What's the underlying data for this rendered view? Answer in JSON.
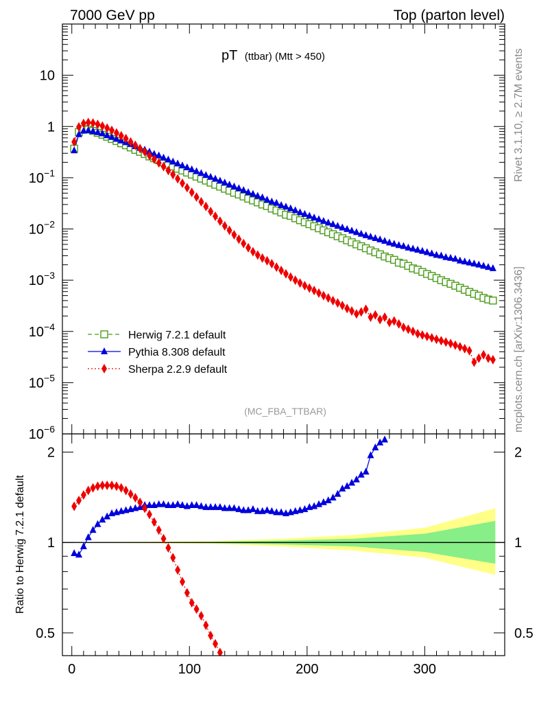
{
  "header": {
    "left": "7000 GeV pp",
    "right": "Top (parton level)"
  },
  "side_labels": {
    "rivet": "Rivet 3.1.10, ≥ 2.7M events",
    "mcplots": "mcplots.cern.ch [arXiv:1306.3436]"
  },
  "chart_data": [
    {
      "type": "line",
      "title_main": "pT",
      "title_sub": "(ttbar) (Mtt > 450)",
      "watermark": "(MC_FBA_TTBAR)",
      "yscale": "log",
      "xlim": [
        -8,
        368
      ],
      "ylim": [
        1e-06,
        100
      ],
      "y_tick_labels": [
        {
          "value": 10,
          "base": "10",
          "exp": ""
        },
        {
          "value": 1,
          "base": "1",
          "exp": ""
        },
        {
          "value": 0.1,
          "base": "10",
          "exp": "−1"
        },
        {
          "value": 0.01,
          "base": "10",
          "exp": "−2"
        },
        {
          "value": 0.001,
          "base": "10",
          "exp": "−3"
        },
        {
          "value": 0.0001,
          "base": "10",
          "exp": "−4"
        },
        {
          "value": 1e-05,
          "base": "10",
          "exp": "−5"
        },
        {
          "value": 1e-06,
          "base": "10",
          "exp": "−6"
        }
      ],
      "legend_position": "bottom-left",
      "series": [
        {
          "name": "Herwig 7.2.1 default",
          "color": "#4a9a1a",
          "marker": "open-square",
          "line": "dashed",
          "x": [
            2,
            6,
            10,
            14,
            18,
            22,
            26,
            30,
            34,
            38,
            42,
            46,
            50,
            54,
            58,
            62,
            66,
            70,
            74,
            78,
            82,
            86,
            90,
            94,
            98,
            102,
            106,
            110,
            114,
            118,
            122,
            126,
            130,
            134,
            138,
            142,
            146,
            150,
            154,
            158,
            162,
            166,
            170,
            174,
            178,
            182,
            186,
            190,
            194,
            198,
            202,
            206,
            210,
            214,
            218,
            222,
            226,
            230,
            234,
            238,
            242,
            246,
            250,
            254,
            258,
            262,
            266,
            270,
            274,
            278,
            282,
            286,
            290,
            294,
            298,
            302,
            306,
            310,
            314,
            318,
            322,
            326,
            330,
            334,
            338,
            342,
            346,
            350,
            354,
            358
          ],
          "values": [
            0.37,
            0.78,
            0.89,
            0.87,
            0.82,
            0.75,
            0.69,
            0.63,
            0.57,
            0.52,
            0.47,
            0.43,
            0.39,
            0.35,
            0.32,
            0.29,
            0.26,
            0.24,
            0.22,
            0.2,
            0.18,
            0.166,
            0.15,
            0.138,
            0.126,
            0.115,
            0.105,
            0.096,
            0.088,
            0.08,
            0.073,
            0.067,
            0.061,
            0.056,
            0.051,
            0.047,
            0.043,
            0.039,
            0.036,
            0.033,
            0.03,
            0.028,
            0.025,
            0.023,
            0.021,
            0.019,
            0.018,
            0.0162,
            0.0148,
            0.0135,
            0.0124,
            0.0113,
            0.0103,
            0.0094,
            0.0086,
            0.0079,
            0.0072,
            0.0066,
            0.006,
            0.0055,
            0.005,
            0.0046,
            0.0042,
            0.0038,
            0.0035,
            0.0032,
            0.0029,
            0.0027,
            0.0025,
            0.0022,
            0.0021,
            0.0019,
            0.0017,
            0.0016,
            0.00145,
            0.00132,
            0.00121,
            0.0011,
            0.001,
            0.00092,
            0.00085,
            0.00078,
            0.00071,
            0.00065,
            0.00059,
            0.00054,
            0.0005,
            0.00045,
            0.00042,
            0.0004
          ]
        },
        {
          "name": "Pythia 8.308 default",
          "color": "#0000dd",
          "marker": "filled-triangle",
          "line": "solid",
          "x": [
            2,
            6,
            10,
            14,
            18,
            22,
            26,
            30,
            34,
            38,
            42,
            46,
            50,
            54,
            58,
            62,
            66,
            70,
            74,
            78,
            82,
            86,
            90,
            94,
            98,
            102,
            106,
            110,
            114,
            118,
            122,
            126,
            130,
            134,
            138,
            142,
            146,
            150,
            154,
            158,
            162,
            166,
            170,
            174,
            178,
            182,
            186,
            190,
            194,
            198,
            202,
            206,
            210,
            214,
            218,
            222,
            226,
            230,
            234,
            238,
            242,
            246,
            250,
            254,
            258,
            262,
            266,
            270,
            274,
            278,
            282,
            286,
            290,
            294,
            298,
            302,
            306,
            310,
            314,
            318,
            322,
            326,
            330,
            334,
            338,
            342,
            346,
            350,
            354,
            358
          ],
          "values": [
            0.34,
            0.7,
            0.82,
            0.84,
            0.81,
            0.77,
            0.73,
            0.67,
            0.62,
            0.57,
            0.53,
            0.49,
            0.45,
            0.41,
            0.38,
            0.35,
            0.32,
            0.29,
            0.27,
            0.245,
            0.225,
            0.205,
            0.188,
            0.172,
            0.158,
            0.145,
            0.133,
            0.122,
            0.112,
            0.103,
            0.095,
            0.087,
            0.08,
            0.073,
            0.067,
            0.062,
            0.057,
            0.052,
            0.048,
            0.044,
            0.041,
            0.037,
            0.034,
            0.032,
            0.029,
            0.027,
            0.025,
            0.023,
            0.021,
            0.0195,
            0.018,
            0.0166,
            0.0154,
            0.0142,
            0.0132,
            0.0123,
            0.0114,
            0.0106,
            0.0099,
            0.0092,
            0.0086,
            0.008,
            0.0075,
            0.007,
            0.0066,
            0.0062,
            0.0058,
            0.0054,
            0.0051,
            0.0048,
            0.0046,
            0.0043,
            0.0041,
            0.0039,
            0.0037,
            0.0035,
            0.0033,
            0.0031,
            0.003,
            0.0028,
            0.0027,
            0.0026,
            0.0024,
            0.0023,
            0.0022,
            0.0021,
            0.002,
            0.0019,
            0.0018,
            0.0017
          ]
        },
        {
          "name": "Sherpa 2.2.9 default",
          "color": "#ee0000",
          "marker": "filled-diamond",
          "line": "dotted",
          "x": [
            2,
            6,
            10,
            14,
            18,
            22,
            26,
            30,
            34,
            38,
            42,
            46,
            50,
            54,
            58,
            62,
            66,
            70,
            74,
            78,
            82,
            86,
            90,
            94,
            98,
            102,
            106,
            110,
            114,
            118,
            122,
            126,
            130,
            134,
            138,
            142,
            146,
            150,
            154,
            158,
            162,
            166,
            170,
            174,
            178,
            182,
            186,
            190,
            194,
            198,
            202,
            206,
            210,
            214,
            218,
            222,
            226,
            230,
            234,
            238,
            242,
            246,
            250,
            254,
            258,
            262,
            266,
            270,
            274,
            278,
            282,
            286,
            290,
            294,
            298,
            302,
            306,
            310,
            314,
            318,
            322,
            326,
            330,
            334,
            338,
            342,
            346,
            350,
            354,
            358
          ],
          "values": [
            0.5,
            0.98,
            1.15,
            1.2,
            1.17,
            1.1,
            1.02,
            0.93,
            0.84,
            0.75,
            0.66,
            0.58,
            0.5,
            0.43,
            0.37,
            0.32,
            0.27,
            0.23,
            0.195,
            0.165,
            0.138,
            0.115,
            0.095,
            0.078,
            0.064,
            0.052,
            0.042,
            0.034,
            0.0275,
            0.022,
            0.0177,
            0.0142,
            0.0115,
            0.0094,
            0.0077,
            0.0063,
            0.0052,
            0.0043,
            0.0036,
            0.0031,
            0.0027,
            0.0024,
            0.0021,
            0.0018,
            0.00155,
            0.00133,
            0.00115,
            0.001,
            0.00088,
            0.00078,
            0.0007,
            0.00063,
            0.00056,
            0.0005,
            0.00045,
            0.0004,
            0.00036,
            0.00032,
            0.00028,
            0.00025,
            0.00022,
            0.00024,
            0.00027,
            0.00019,
            0.00021,
            0.00017,
            0.00019,
            0.00015,
            0.00016,
            0.00014,
            0.00012,
            0.00011,
            0.0001,
            9e-05,
            8.5e-05,
            8e-05,
            7.5e-05,
            7e-05,
            6.6e-05,
            6.2e-05,
            5.8e-05,
            5.4e-05,
            5e-05,
            4.6e-05,
            4.2e-05,
            2.5e-05,
            3e-05,
            3.5e-05,
            3e-05,
            2.8e-05
          ]
        }
      ]
    },
    {
      "type": "line",
      "ylabel": "Ratio to Herwig 7.2.1 default",
      "yscale": "log",
      "xlim": [
        -8,
        368
      ],
      "ylim": [
        0.42,
        2.3
      ],
      "x_tick_labels": [
        "0",
        "100",
        "200",
        "300"
      ],
      "y_tick_labels": [
        "0.5",
        "1",
        "2"
      ],
      "reference_line": 1,
      "uncertainty_bands": [
        {
          "color": "#ffff88",
          "x": [
            0,
            60,
            120,
            180,
            240,
            300,
            360
          ],
          "upper": [
            1.002,
            1.005,
            1.01,
            1.03,
            1.06,
            1.12,
            1.3
          ],
          "lower": [
            0.998,
            0.995,
            0.99,
            0.97,
            0.94,
            0.89,
            0.78
          ]
        },
        {
          "color": "#88ee88",
          "x": [
            0,
            60,
            120,
            180,
            240,
            300,
            360
          ],
          "upper": [
            1.001,
            1.003,
            1.005,
            1.015,
            1.03,
            1.07,
            1.18
          ],
          "lower": [
            0.999,
            0.997,
            0.995,
            0.985,
            0.97,
            0.93,
            0.85
          ]
        }
      ],
      "series": [
        {
          "color": "#0000dd",
          "marker": "filled-triangle",
          "line": "solid",
          "x": [
            2,
            6,
            10,
            14,
            18,
            22,
            26,
            30,
            34,
            38,
            42,
            46,
            50,
            54,
            58,
            62,
            66,
            70,
            74,
            78,
            82,
            86,
            90,
            94,
            98,
            102,
            106,
            110,
            114,
            118,
            122,
            126,
            130,
            134,
            138,
            142,
            146,
            150,
            154,
            158,
            162,
            166,
            170,
            174,
            178,
            182,
            186,
            190,
            194,
            198,
            202,
            206,
            210,
            214,
            218,
            222,
            226,
            230,
            234,
            238,
            242,
            246,
            250,
            254,
            258,
            262,
            266
          ],
          "values": [
            0.92,
            0.91,
            0.97,
            1.04,
            1.1,
            1.15,
            1.19,
            1.22,
            1.25,
            1.26,
            1.27,
            1.28,
            1.29,
            1.3,
            1.31,
            1.33,
            1.33,
            1.33,
            1.34,
            1.34,
            1.33,
            1.33,
            1.34,
            1.33,
            1.32,
            1.33,
            1.33,
            1.32,
            1.31,
            1.31,
            1.31,
            1.31,
            1.3,
            1.3,
            1.3,
            1.29,
            1.28,
            1.28,
            1.29,
            1.27,
            1.27,
            1.28,
            1.27,
            1.26,
            1.26,
            1.25,
            1.26,
            1.27,
            1.28,
            1.29,
            1.31,
            1.32,
            1.34,
            1.36,
            1.38,
            1.41,
            1.45,
            1.51,
            1.54,
            1.58,
            1.62,
            1.68,
            1.72,
            1.95,
            2.07,
            2.15,
            2.2
          ]
        },
        {
          "color": "#ee0000",
          "marker": "filled-diamond",
          "line": "dotted",
          "x": [
            2,
            6,
            10,
            14,
            18,
            22,
            26,
            30,
            34,
            38,
            42,
            46,
            50,
            54,
            58,
            62,
            66,
            70,
            74,
            78,
            82,
            86,
            90,
            94,
            98,
            102,
            106,
            110,
            114,
            118,
            122,
            126
          ],
          "values": [
            1.32,
            1.38,
            1.44,
            1.49,
            1.52,
            1.54,
            1.55,
            1.55,
            1.55,
            1.54,
            1.52,
            1.49,
            1.45,
            1.41,
            1.36,
            1.3,
            1.24,
            1.17,
            1.1,
            1.03,
            0.96,
            0.89,
            0.81,
            0.74,
            0.68,
            0.63,
            0.6,
            0.57,
            0.53,
            0.49,
            0.46,
            0.43
          ]
        }
      ]
    }
  ]
}
